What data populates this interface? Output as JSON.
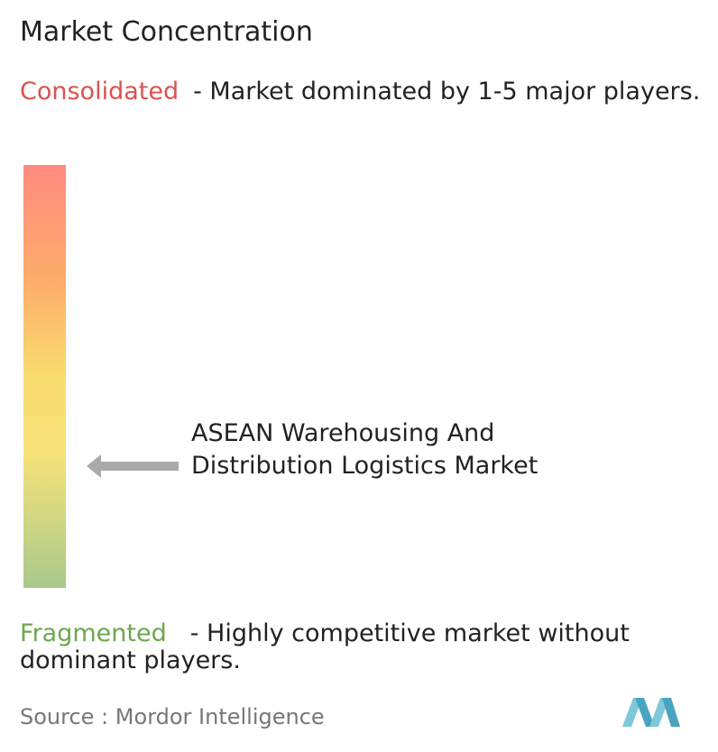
{
  "header": {
    "title": "Market Concentration"
  },
  "consolidated": {
    "label": "Consolidated",
    "description": "- Market dominated by 1-5 major players."
  },
  "marker": {
    "label": "ASEAN Warehousing And Distribution Logistics Market"
  },
  "fragmented": {
    "label": "Fragmented",
    "description": "- Highly competitive market without dominant players."
  },
  "footer": {
    "source_label": "Source :",
    "source": "Mordor Intelligence"
  }
}
